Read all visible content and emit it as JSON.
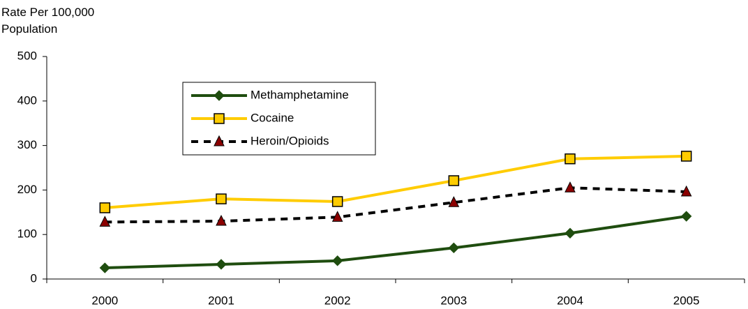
{
  "chart_data": {
    "type": "line",
    "y_label": "Rate Per 100,000 Population",
    "categories": [
      "2000",
      "2001",
      "2002",
      "2003",
      "2004",
      "2005"
    ],
    "series": [
      {
        "name": "Methamphetamine",
        "color": "#1f4d0f",
        "marker": "diamond",
        "marker_color": "#1f4d0f",
        "dash": false,
        "values": [
          25,
          33,
          41,
          70,
          103,
          141
        ]
      },
      {
        "name": "Cocaine",
        "color": "#ffcc00",
        "marker": "square",
        "marker_color": "#ffcc00",
        "dash": false,
        "values": [
          160,
          180,
          174,
          221,
          270,
          276
        ]
      },
      {
        "name": "Heroin/Opioids",
        "color": "#000000",
        "marker": "triangle",
        "marker_color": "#8b0000",
        "dash": true,
        "values": [
          128,
          130,
          139,
          172,
          205,
          196
        ]
      }
    ],
    "ylim": [
      0,
      500
    ],
    "yticks": [
      0,
      100,
      200,
      300,
      400,
      500
    ],
    "grid": false,
    "legend": "upper-left"
  }
}
